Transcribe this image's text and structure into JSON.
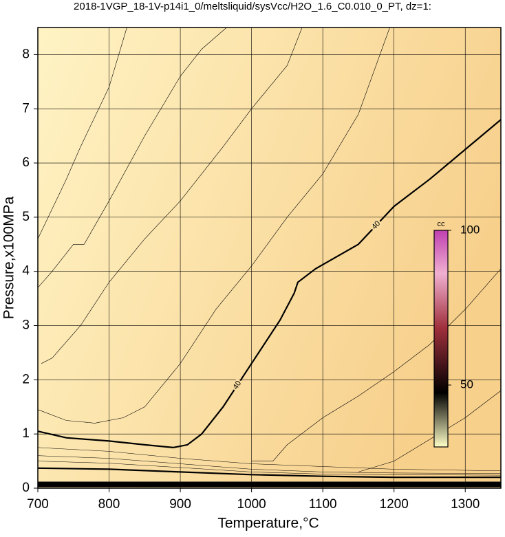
{
  "chart_data": {
    "type": "contour",
    "title": "2018-1VGP_18-1V-p14i1_0/meltsliquid/sysVcc/H2O_1.6_C0.010_0_PT, dz=1:",
    "x_label": "Temperature,°C",
    "y_label": "Pressure,x100MPa",
    "xlim": [
      700,
      1350
    ],
    "ylim": [
      0,
      8.5
    ],
    "xticks": [
      700,
      800,
      900,
      1000,
      1100,
      1200,
      1300
    ],
    "yticks": [
      0,
      1,
      2,
      3,
      4,
      5,
      6,
      7,
      8
    ],
    "grid": true,
    "series": [
      {
        "level": 40,
        "color": "#000000",
        "linewidth": 2.2,
        "x": [
          700,
          740,
          800,
          850,
          890,
          910,
          930,
          960,
          1000,
          1040,
          1060,
          1065,
          1090,
          1150,
          1200,
          1250,
          1300,
          1350
        ],
        "y": [
          1.05,
          0.93,
          0.87,
          0.8,
          0.75,
          0.8,
          1.0,
          1.5,
          2.3,
          3.1,
          3.6,
          3.8,
          4.05,
          4.5,
          5.2,
          5.7,
          6.25,
          6.8
        ]
      },
      {
        "color": "#000000",
        "linewidth": 0.6,
        "x": [
          700,
          740,
          760,
          800,
          825
        ],
        "y": [
          4.6,
          5.7,
          6.3,
          7.4,
          8.5
        ]
      },
      {
        "color": "#000000",
        "linewidth": 0.6,
        "x": [
          700,
          720,
          750,
          765,
          800,
          850,
          900,
          930,
          965
        ],
        "y": [
          3.7,
          4.0,
          4.5,
          4.5,
          5.3,
          6.5,
          7.6,
          8.1,
          8.5
        ]
      },
      {
        "color": "#000000",
        "linewidth": 0.6,
        "x": [
          705,
          720,
          760,
          800,
          850,
          900,
          960,
          1000,
          1050,
          1071
        ],
        "y": [
          2.3,
          2.4,
          3.0,
          3.8,
          4.6,
          5.3,
          6.3,
          7.0,
          7.8,
          8.5
        ]
      },
      {
        "color": "#000000",
        "linewidth": 0.6,
        "x": [
          700,
          740,
          780,
          820,
          850,
          900,
          950,
          1000,
          1050,
          1100,
          1150,
          1194
        ],
        "y": [
          1.45,
          1.25,
          1.2,
          1.3,
          1.5,
          2.3,
          3.3,
          4.1,
          5.0,
          5.8,
          6.9,
          8.5
        ]
      },
      {
        "color": "#000000",
        "linewidth": 0.6,
        "x": [
          1000,
          1030,
          1050,
          1100,
          1150,
          1200,
          1250,
          1300,
          1350
        ],
        "y": [
          0.5,
          0.5,
          0.8,
          1.3,
          1.7,
          2.15,
          2.65,
          3.3,
          4.05
        ]
      },
      {
        "color": "#000000",
        "linewidth": 0.6,
        "x": [
          1150,
          1200,
          1250,
          1300,
          1350
        ],
        "y": [
          0.3,
          0.5,
          0.9,
          1.3,
          1.8
        ]
      },
      {
        "color": "#000000",
        "linewidth": 0.5,
        "x": [
          700,
          800,
          900,
          1000,
          1100,
          1200,
          1350
        ],
        "y": [
          0.75,
          0.68,
          0.55,
          0.45,
          0.4,
          0.35,
          0.32
        ]
      },
      {
        "color": "#000000",
        "linewidth": 0.5,
        "x": [
          700,
          800,
          900,
          1000,
          1100,
          1200,
          1350
        ],
        "y": [
          0.6,
          0.55,
          0.45,
          0.35,
          0.3,
          0.28,
          0.27
        ]
      },
      {
        "color": "#000000",
        "linewidth": 0.5,
        "x": [
          700,
          800,
          900,
          1000,
          1100,
          1200,
          1350
        ],
        "y": [
          0.5,
          0.46,
          0.38,
          0.3,
          0.26,
          0.25,
          0.24
        ]
      },
      {
        "color": "#000000",
        "linewidth": 2.2,
        "x": [
          700,
          800,
          900,
          1000,
          1100,
          1200,
          1350
        ],
        "y": [
          0.37,
          0.35,
          0.3,
          0.25,
          0.22,
          0.2,
          0.2
        ]
      },
      {
        "color": "#000000",
        "linewidth": 8,
        "x": [
          700,
          1350
        ],
        "y": [
          0.07,
          0.07
        ]
      }
    ],
    "colorbar": {
      "label": "cc",
      "lim": [
        30,
        100
      ],
      "ticks": [
        50,
        100
      ]
    }
  }
}
